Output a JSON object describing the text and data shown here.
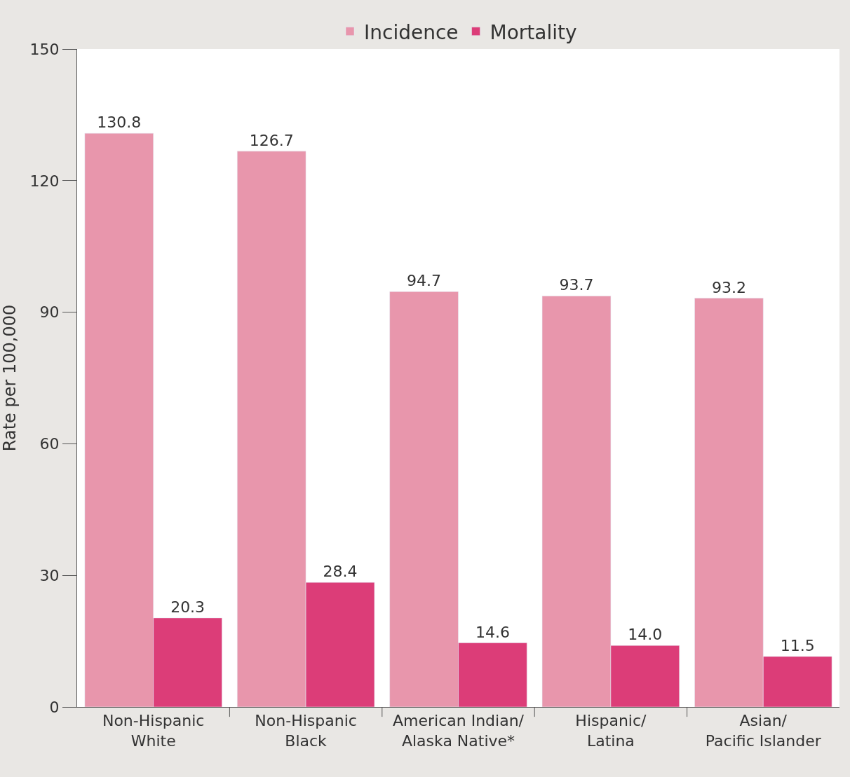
{
  "chart_data": {
    "type": "bar",
    "ylabel": "Rate per 100,000",
    "categories": [
      "Non-Hispanic\nWhite",
      "Non-Hispanic\nBlack",
      "American Indian/\nAlaska Native*",
      "Hispanic/\nLatina",
      "Asian/\nPacific Islander"
    ],
    "series": [
      {
        "name": "Incidence",
        "color": "#e896ac",
        "values": [
          130.8,
          126.7,
          94.7,
          93.7,
          93.2
        ],
        "value_labels": [
          "130.8",
          "126.7",
          "94.7",
          "93.7",
          "93.2"
        ]
      },
      {
        "name": "Mortality",
        "color": "#dc3d78",
        "values": [
          20.3,
          28.4,
          14.6,
          14.0,
          11.5
        ],
        "value_labels": [
          "20.3",
          "28.4",
          "14.6",
          "14.0",
          "11.5"
        ]
      }
    ],
    "ylim": [
      0,
      150
    ],
    "yticks": [
      0,
      30,
      60,
      90,
      120,
      150
    ],
    "legend": "top"
  }
}
